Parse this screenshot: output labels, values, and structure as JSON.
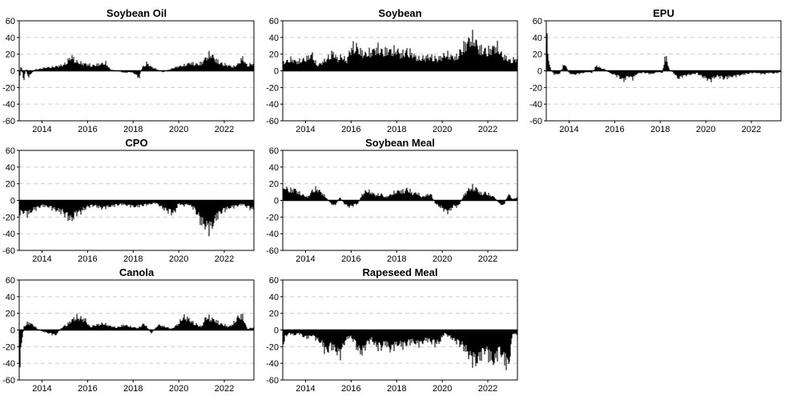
{
  "chart_data": [
    {
      "type": "area",
      "title": "Soybean Oil",
      "xlim": [
        2013.0,
        2023.3
      ],
      "ylim": [
        -60,
        60
      ],
      "yticks": [
        -60,
        -40,
        -20,
        0,
        20,
        40,
        60
      ],
      "xticks": [
        2014,
        2016,
        2018,
        2020,
        2022
      ],
      "grid": "horizontal dashed",
      "series": [
        {
          "x": [
            2013.0,
            2013.05,
            2013.1,
            2013.2,
            2013.3,
            2013.4,
            2013.5,
            2013.7,
            2013.9,
            2014.0,
            2014.2,
            2014.5,
            2014.8,
            2015.0,
            2015.2,
            2015.3,
            2015.5,
            2015.7,
            2016.0,
            2016.2,
            2016.5,
            2016.8,
            2017.0,
            2017.3,
            2017.6,
            2017.9,
            2018.1,
            2018.25,
            2018.4,
            2018.6,
            2018.8,
            2019.0,
            2019.3,
            2019.6,
            2019.9,
            2020.2,
            2020.5,
            2020.8,
            2021.0,
            2021.2,
            2021.4,
            2021.6,
            2021.8,
            2022.0,
            2022.2,
            2022.4,
            2022.6,
            2022.8,
            2023.0,
            2023.3
          ],
          "values": [
            -40,
            8,
            6,
            -15,
            5,
            -12,
            -5,
            2,
            3,
            4,
            5,
            6,
            8,
            10,
            18,
            22,
            14,
            12,
            10,
            8,
            10,
            12,
            2,
            0,
            -3,
            -2,
            -5,
            -12,
            5,
            12,
            6,
            3,
            -2,
            2,
            6,
            8,
            12,
            10,
            12,
            20,
            26,
            18,
            12,
            10,
            8,
            6,
            10,
            20,
            8,
            12
          ]
        }
      ]
    },
    {
      "type": "area",
      "title": "Soybean",
      "xlim": [
        2013.0,
        2023.3
      ],
      "ylim": [
        -60,
        60
      ],
      "yticks": [
        -60,
        -40,
        -20,
        0,
        20,
        40,
        60
      ],
      "xticks": [
        2014,
        2016,
        2018,
        2020,
        2022
      ],
      "grid": "horizontal dashed",
      "series": [
        {
          "x": [
            2013.0,
            2013.2,
            2013.4,
            2013.6,
            2013.8,
            2014.0,
            2014.3,
            2014.5,
            2014.7,
            2015.0,
            2015.2,
            2015.4,
            2015.6,
            2015.8,
            2016.0,
            2016.2,
            2016.4,
            2016.6,
            2016.8,
            2017.0,
            2017.2,
            2017.4,
            2017.6,
            2017.8,
            2018.0,
            2018.2,
            2018.4,
            2018.6,
            2018.8,
            2019.0,
            2019.2,
            2019.4,
            2019.6,
            2019.8,
            2020.0,
            2020.2,
            2020.4,
            2020.6,
            2020.8,
            2021.0,
            2021.2,
            2021.4,
            2021.6,
            2021.8,
            2022.0,
            2022.2,
            2022.4,
            2022.6,
            2022.8,
            2023.0,
            2023.3
          ],
          "values": [
            12,
            15,
            18,
            14,
            16,
            18,
            25,
            8,
            12,
            20,
            28,
            18,
            22,
            15,
            35,
            38,
            30,
            25,
            28,
            32,
            35,
            28,
            32,
            30,
            32,
            25,
            30,
            28,
            22,
            18,
            20,
            22,
            20,
            18,
            22,
            25,
            22,
            20,
            30,
            40,
            48,
            50,
            35,
            32,
            30,
            35,
            38,
            25,
            20,
            15,
            20
          ]
        }
      ]
    },
    {
      "type": "area",
      "title": "EPU",
      "xlim": [
        2013.0,
        2023.3
      ],
      "ylim": [
        -60,
        60
      ],
      "yticks": [
        -60,
        -40,
        -20,
        0,
        20,
        40,
        60
      ],
      "xticks": [
        2014,
        2016,
        2018,
        2020,
        2022
      ],
      "grid": "horizontal dashed",
      "series": [
        {
          "x": [
            2013.0,
            2013.05,
            2013.1,
            2013.15,
            2013.2,
            2013.3,
            2013.4,
            2013.6,
            2013.8,
            2014.0,
            2014.2,
            2014.5,
            2014.8,
            2015.0,
            2015.2,
            2015.4,
            2015.6,
            2015.8,
            2016.0,
            2016.2,
            2016.4,
            2016.6,
            2016.8,
            2017.0,
            2017.3,
            2017.6,
            2017.9,
            2018.1,
            2018.2,
            2018.3,
            2018.4,
            2018.6,
            2018.8,
            2019.0,
            2019.3,
            2019.6,
            2019.9,
            2020.2,
            2020.5,
            2020.8,
            2021.0,
            2021.3,
            2021.6,
            2021.9,
            2022.2,
            2022.5,
            2022.8,
            2023.0,
            2023.3
          ],
          "values": [
            58,
            45,
            20,
            8,
            2,
            -4,
            -6,
            -4,
            12,
            -4,
            -6,
            -4,
            -2,
            -3,
            8,
            4,
            2,
            -4,
            -6,
            -10,
            -15,
            -8,
            -12,
            -4,
            -3,
            -5,
            -2,
            -3,
            20,
            18,
            2,
            -4,
            -12,
            -8,
            -6,
            -4,
            -10,
            -15,
            -8,
            -12,
            -10,
            -8,
            -6,
            -4,
            -3,
            -5,
            -3,
            -4,
            -2
          ]
        }
      ]
    },
    {
      "type": "area",
      "title": "CPO",
      "xlim": [
        2013.0,
        2023.3
      ],
      "ylim": [
        -60,
        60
      ],
      "yticks": [
        -60,
        -40,
        -20,
        0,
        20,
        40,
        60
      ],
      "xticks": [
        2014,
        2016,
        2018,
        2020,
        2022
      ],
      "grid": "horizontal dashed",
      "series": [
        {
          "x": [
            2013.0,
            2013.2,
            2013.4,
            2013.6,
            2013.8,
            2014.0,
            2014.3,
            2014.6,
            2014.9,
            2015.1,
            2015.3,
            2015.5,
            2015.7,
            2016.0,
            2016.3,
            2016.6,
            2016.9,
            2017.2,
            2017.5,
            2017.8,
            2018.1,
            2018.4,
            2018.7,
            2019.0,
            2019.3,
            2019.6,
            2019.8,
            2020.0,
            2020.2,
            2020.4,
            2020.6,
            2020.8,
            2021.0,
            2021.2,
            2021.4,
            2021.6,
            2021.8,
            2022.0,
            2022.2,
            2022.4,
            2022.6,
            2022.8,
            2023.0,
            2023.3
          ],
          "values": [
            -20,
            -18,
            -22,
            -15,
            -12,
            -8,
            -10,
            -15,
            -18,
            -25,
            -30,
            -20,
            -18,
            -10,
            -8,
            -12,
            -10,
            -8,
            -6,
            -8,
            -10,
            -8,
            -6,
            -4,
            -12,
            -18,
            -20,
            -5,
            -8,
            -6,
            -10,
            -20,
            -35,
            -40,
            -45,
            -30,
            -20,
            -15,
            -12,
            -10,
            -8,
            -6,
            -10,
            -15
          ]
        }
      ]
    },
    {
      "type": "area",
      "title": "Soybean Meal",
      "xlim": [
        2013.0,
        2023.3
      ],
      "ylim": [
        -60,
        60
      ],
      "yticks": [
        -60,
        -40,
        -20,
        0,
        20,
        40,
        60
      ],
      "xticks": [
        2014,
        2016,
        2018,
        2020,
        2022
      ],
      "grid": "horizontal dashed",
      "series": [
        {
          "x": [
            2013.0,
            2013.05,
            2013.1,
            2013.3,
            2013.5,
            2013.7,
            2013.9,
            2014.1,
            2014.3,
            2014.5,
            2014.7,
            2014.9,
            2015.1,
            2015.3,
            2015.5,
            2015.7,
            2015.9,
            2016.1,
            2016.3,
            2016.5,
            2016.7,
            2016.9,
            2017.1,
            2017.3,
            2017.5,
            2017.7,
            2017.9,
            2018.1,
            2018.3,
            2018.5,
            2018.7,
            2018.9,
            2019.1,
            2019.3,
            2019.5,
            2019.7,
            2019.9,
            2020.1,
            2020.3,
            2020.5,
            2020.7,
            2020.9,
            2021.1,
            2021.3,
            2021.5,
            2021.7,
            2021.9,
            2022.1,
            2022.3,
            2022.5,
            2022.7,
            2022.9,
            2023.1,
            2023.3
          ],
          "values": [
            -15,
            28,
            20,
            15,
            18,
            12,
            8,
            5,
            15,
            18,
            12,
            5,
            -5,
            -8,
            5,
            -5,
            -10,
            -8,
            -5,
            10,
            15,
            12,
            8,
            10,
            5,
            8,
            12,
            15,
            14,
            18,
            10,
            12,
            5,
            8,
            10,
            -5,
            -10,
            -15,
            -18,
            -8,
            -10,
            5,
            15,
            20,
            18,
            10,
            12,
            8,
            5,
            -5,
            -8,
            10,
            2,
            5
          ]
        }
      ]
    },
    {
      "type": "area",
      "title": "Canola",
      "xlim": [
        2013.0,
        2023.3
      ],
      "ylim": [
        -60,
        60
      ],
      "yticks": [
        -60,
        -40,
        -20,
        0,
        20,
        40,
        60
      ],
      "xticks": [
        2014,
        2016,
        2018,
        2020,
        2022
      ],
      "grid": "horizontal dashed",
      "series": [
        {
          "x": [
            2013.0,
            2013.05,
            2013.1,
            2013.2,
            2013.4,
            2013.6,
            2013.8,
            2014.0,
            2014.3,
            2014.6,
            2014.9,
            2015.1,
            2015.3,
            2015.5,
            2015.7,
            2015.9,
            2016.1,
            2016.4,
            2016.7,
            2017.0,
            2017.3,
            2017.6,
            2017.9,
            2018.2,
            2018.5,
            2018.8,
            2019.1,
            2019.4,
            2019.7,
            2020.0,
            2020.2,
            2020.4,
            2020.6,
            2020.8,
            2021.0,
            2021.2,
            2021.4,
            2021.6,
            2021.8,
            2022.0,
            2022.2,
            2022.4,
            2022.6,
            2022.8,
            2023.0,
            2023.3
          ],
          "values": [
            -58,
            -45,
            -25,
            5,
            12,
            8,
            2,
            -2,
            -5,
            -8,
            5,
            8,
            15,
            20,
            18,
            16,
            5,
            8,
            10,
            6,
            4,
            8,
            5,
            3,
            10,
            -5,
            8,
            5,
            2,
            10,
            20,
            18,
            12,
            8,
            5,
            20,
            18,
            15,
            10,
            8,
            5,
            10,
            20,
            22,
            2,
            4
          ]
        }
      ]
    },
    {
      "type": "area",
      "title": "Rapeseed Meal",
      "xlim": [
        2013.0,
        2023.3
      ],
      "ylim": [
        -60,
        60
      ],
      "yticks": [
        -60,
        -40,
        -20,
        0,
        20,
        40,
        60
      ],
      "xticks": [
        2014,
        2016,
        2018,
        2020,
        2022
      ],
      "grid": "horizontal dashed",
      "series": [
        {
          "x": [
            2013.0,
            2013.05,
            2013.1,
            2013.3,
            2013.5,
            2013.7,
            2013.9,
            2014.1,
            2014.3,
            2014.5,
            2014.7,
            2014.9,
            2015.1,
            2015.3,
            2015.5,
            2015.7,
            2015.9,
            2016.1,
            2016.3,
            2016.5,
            2016.7,
            2016.9,
            2017.1,
            2017.3,
            2017.5,
            2017.7,
            2017.9,
            2018.1,
            2018.3,
            2018.5,
            2018.7,
            2018.9,
            2019.1,
            2019.3,
            2019.5,
            2019.7,
            2019.9,
            2020.1,
            2020.3,
            2020.5,
            2020.7,
            2020.9,
            2021.1,
            2021.3,
            2021.5,
            2021.7,
            2021.9,
            2022.1,
            2022.3,
            2022.5,
            2022.7,
            2022.9,
            2023.1,
            2023.3
          ],
          "values": [
            20,
            -35,
            -10,
            -5,
            -8,
            -5,
            -10,
            -12,
            -8,
            -15,
            -20,
            -35,
            -25,
            -30,
            -40,
            -20,
            -10,
            -15,
            -30,
            -35,
            -20,
            -15,
            -25,
            -28,
            -20,
            -30,
            -25,
            -22,
            -25,
            -20,
            -18,
            -22,
            -20,
            -15,
            -18,
            -22,
            -18,
            -5,
            -10,
            -15,
            -20,
            -25,
            -35,
            -45,
            -50,
            -40,
            -30,
            -45,
            -50,
            -30,
            -45,
            -58,
            -5,
            -8
          ]
        }
      ]
    }
  ]
}
